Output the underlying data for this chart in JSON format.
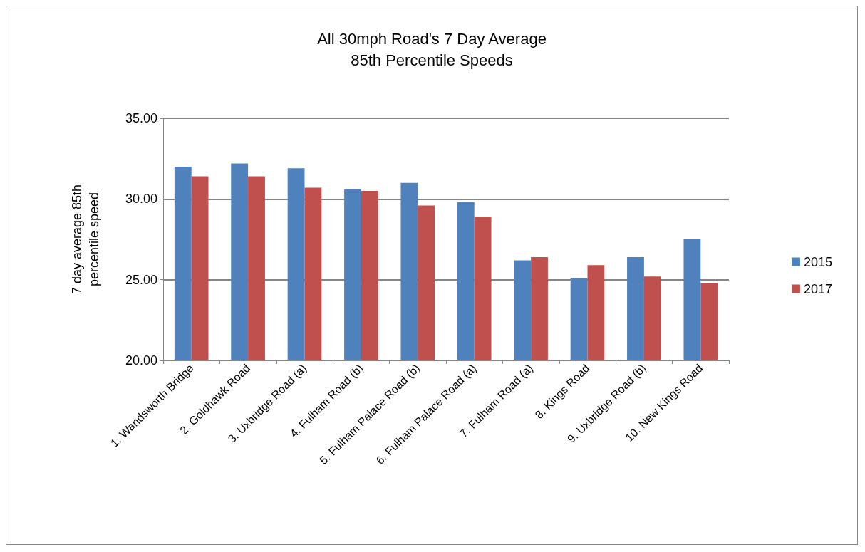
{
  "chart_data": {
    "type": "bar",
    "title": "All 30mph Road's 7 Day Average\n85th Percentile Speeds",
    "ylabel": "7 day average 85th\npercentile speed",
    "categories": [
      "1. Wandsworth Bridge",
      "2. Goldhawk Road",
      "3. Uxbridge Road (a)",
      "4. Fulham Road (b)",
      "5. Fulham Palace Road (b)",
      "6. Fulham Palace Road (a)",
      "7. Fulham Road (a)",
      "8. Kings Road",
      "9. Uxbridge Road (b)",
      "10. New Kings Road"
    ],
    "series": [
      {
        "name": "2015",
        "color": "#4f81bd",
        "values": [
          32.0,
          32.2,
          31.9,
          30.6,
          31.0,
          29.8,
          26.2,
          25.1,
          26.4,
          27.5
        ]
      },
      {
        "name": "2017",
        "color": "#c0504d",
        "values": [
          31.4,
          31.4,
          30.7,
          30.5,
          29.6,
          28.9,
          26.4,
          25.9,
          25.2,
          24.8
        ]
      }
    ],
    "ylim": [
      20,
      35
    ],
    "yticks": [
      {
        "value": 20,
        "label": "20.00"
      },
      {
        "value": 25,
        "label": "25.00"
      },
      {
        "value": 30,
        "label": "30.00"
      },
      {
        "value": 35,
        "label": "35.00"
      }
    ],
    "grid": "y",
    "legend": "right"
  }
}
